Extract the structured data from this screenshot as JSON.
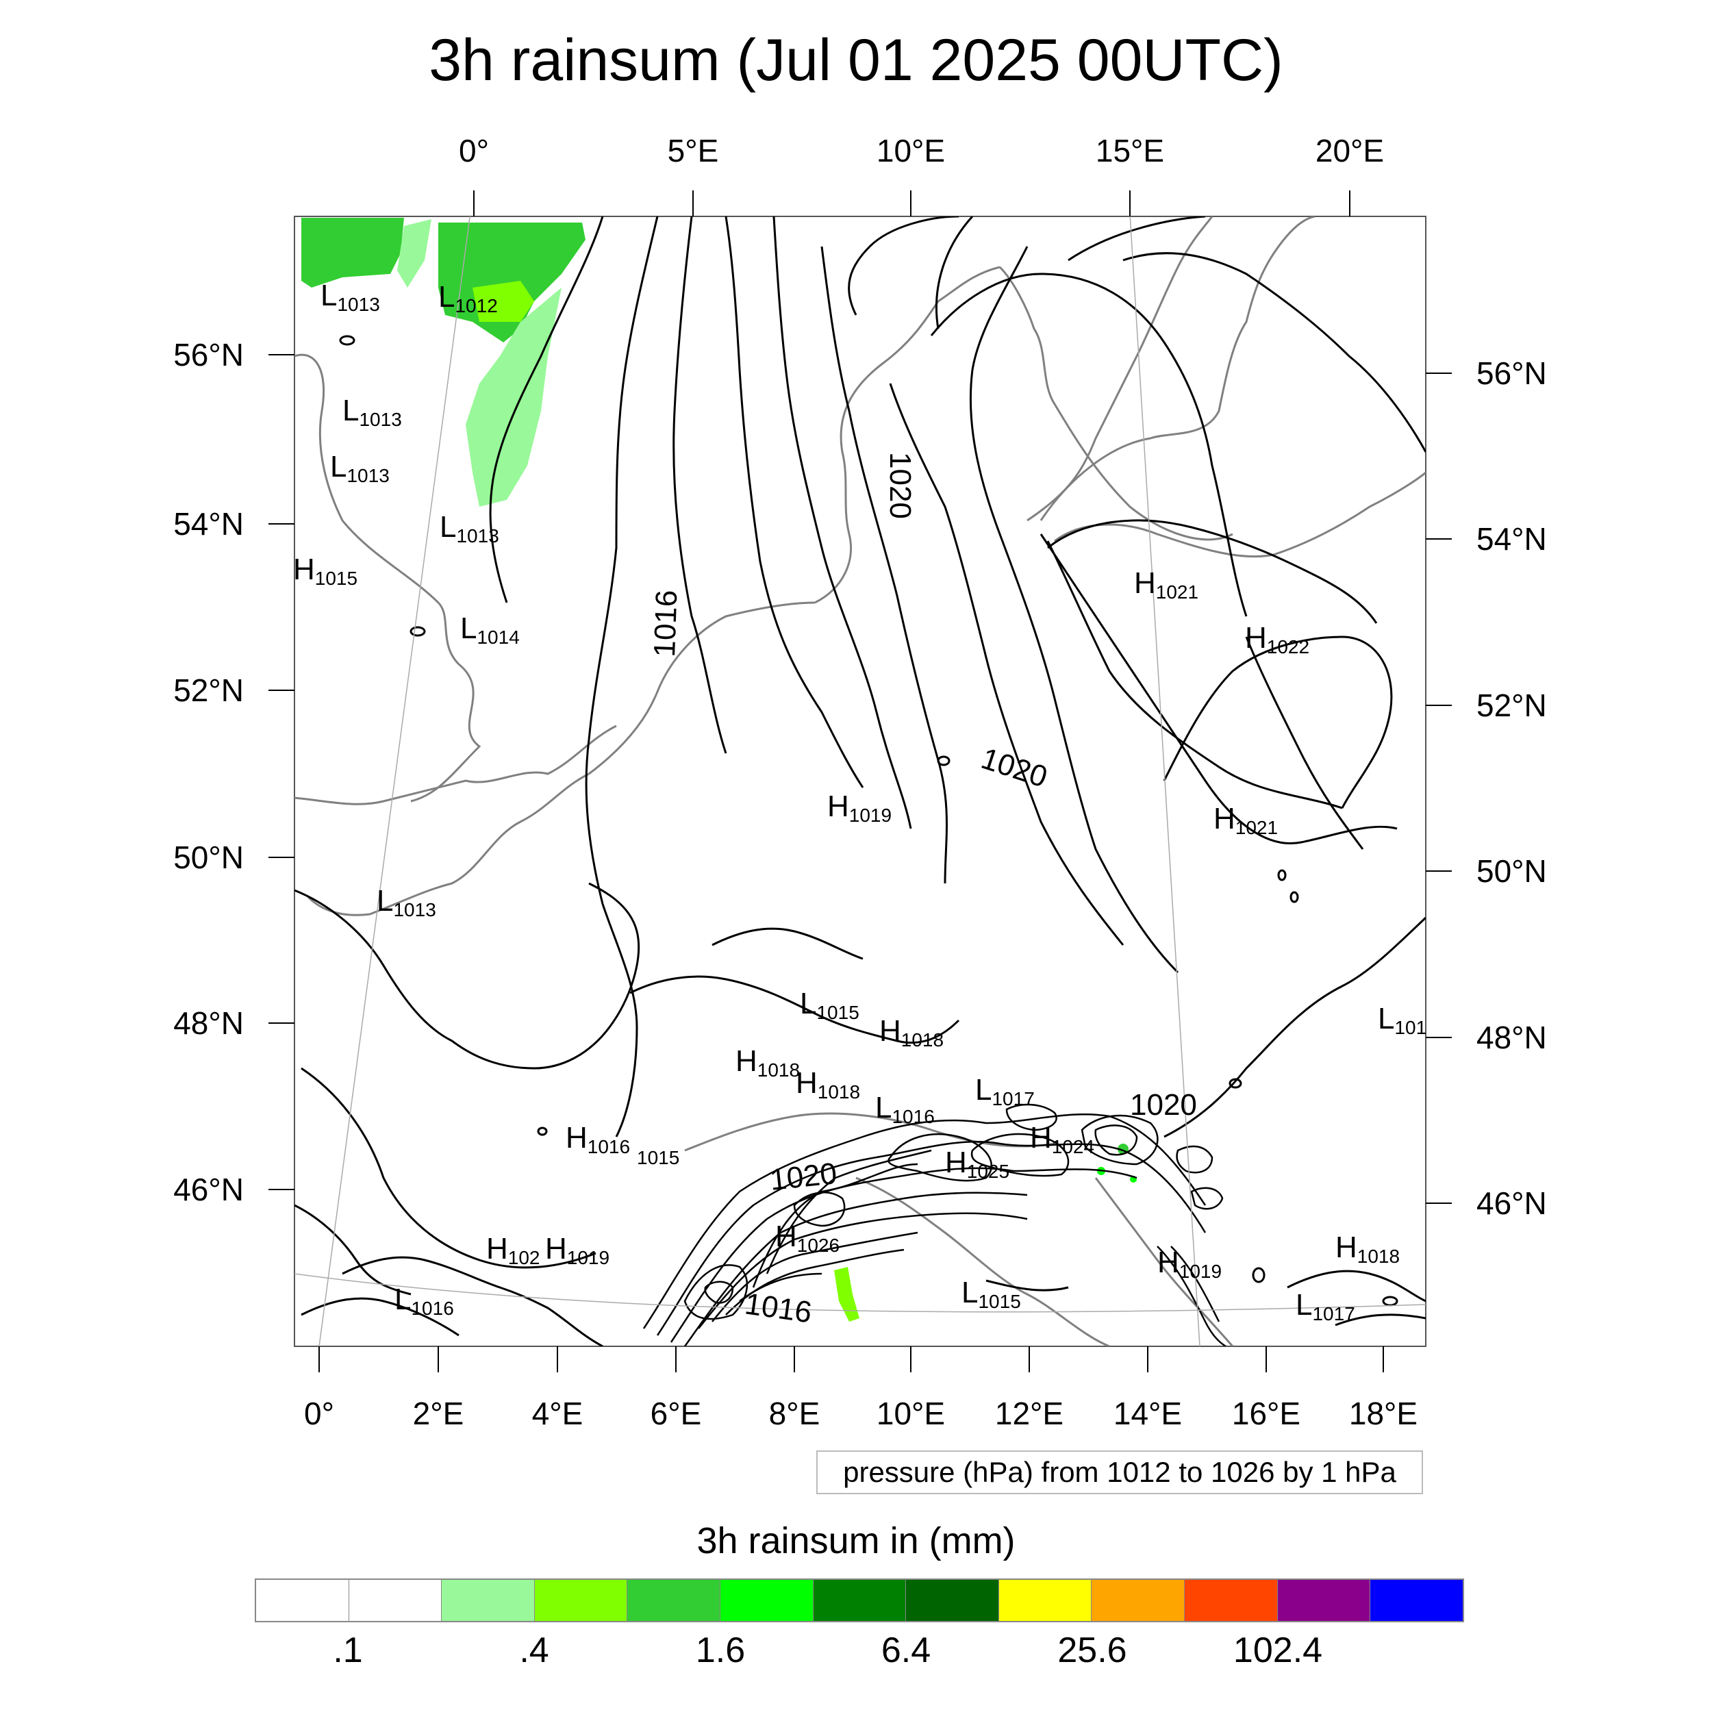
{
  "title": "3h rainsum (Jul 01 2025 00UTC)",
  "top_lon_labels": [
    "0°",
    "5°E",
    "10°E",
    "15°E",
    "20°E"
  ],
  "bottom_lon_labels": [
    "0°",
    "2°E",
    "4°E",
    "6°E",
    "8°E",
    "10°E",
    "12°E",
    "14°E",
    "16°E",
    "18°E"
  ],
  "left_lat_labels": [
    "56°N",
    "54°N",
    "52°N",
    "50°N",
    "48°N",
    "46°N"
  ],
  "right_lat_labels": [
    "56°N",
    "54°N",
    "52°N",
    "50°N",
    "48°N",
    "46°N"
  ],
  "pressure_note": "pressure (hPa) from 1012 to 1026 by 1 hPa",
  "contour_labels": [
    "1020",
    "1016",
    "1020",
    "1020",
    "1020",
    "1016"
  ],
  "pressure_centers": [
    {
      "type": "L",
      "value": "1013"
    },
    {
      "type": "L",
      "value": "1012"
    },
    {
      "type": "L",
      "value": "1013"
    },
    {
      "type": "L",
      "value": "1013"
    },
    {
      "type": "L",
      "value": "1013"
    },
    {
      "type": "H",
      "value": "1015"
    },
    {
      "type": "L",
      "value": "1014"
    },
    {
      "type": "L",
      "value": "1013"
    },
    {
      "type": "H",
      "value": "1021"
    },
    {
      "type": "H",
      "value": "1022"
    },
    {
      "type": "H",
      "value": "1021"
    },
    {
      "type": "H",
      "value": "1019"
    },
    {
      "type": "L",
      "value": "1015"
    },
    {
      "type": "H",
      "value": "1018"
    },
    {
      "type": "H",
      "value": "1018"
    },
    {
      "type": "H",
      "value": "1018"
    },
    {
      "type": "L",
      "value": "1017"
    },
    {
      "type": "L",
      "value": "1016"
    },
    {
      "type": "H",
      "value": "1024"
    },
    {
      "type": "H",
      "value": "1016"
    },
    {
      "type": "",
      "value": "1015"
    },
    {
      "type": "H",
      "value": "1025"
    },
    {
      "type": "H",
      "value": "1026"
    },
    {
      "type": "H",
      "value": "102"
    },
    {
      "type": "H",
      "value": "1019"
    },
    {
      "type": "L",
      "value": "1016"
    },
    {
      "type": "L",
      "value": "1015"
    },
    {
      "type": "H",
      "value": "1019"
    },
    {
      "type": "H",
      "value": "1018"
    },
    {
      "type": "L",
      "value": "1017"
    },
    {
      "type": "L",
      "value": "101"
    }
  ],
  "colorbar": {
    "title": "3h rainsum in (mm)",
    "colors": [
      "#ffffff",
      "#ffffff",
      "#99f899",
      "#80ff00",
      "#32cd32",
      "#00ff00",
      "#008000",
      "#006400",
      "#ffff00",
      "#ffa500",
      "#ff4500",
      "#8b008b",
      "#0000ff"
    ],
    "labels": [
      ".1",
      ".4",
      "1.6",
      "6.4",
      "25.6",
      "102.4"
    ]
  },
  "colors": {
    "rain_light": "#99f899",
    "rain_medium": "#32cd32",
    "rain_bright": "#00ff00",
    "coastline": "#808080",
    "isobar": "#000000"
  }
}
